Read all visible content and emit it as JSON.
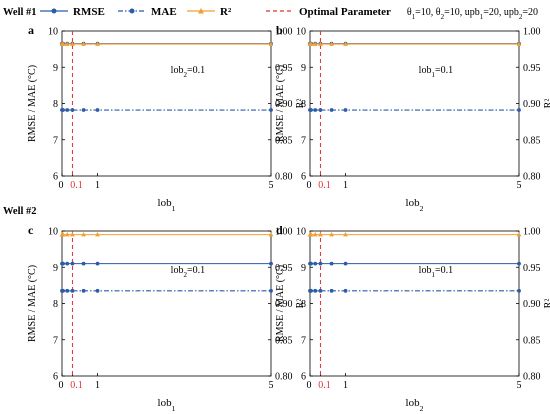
{
  "legend": {
    "items": [
      {
        "label": "RMSE",
        "color": "#2a5ca8",
        "style": "solid",
        "marker": "circle"
      },
      {
        "label": "MAE",
        "color": "#2a5ca8",
        "style": "dashdot",
        "marker": "circle"
      },
      {
        "label": "R²",
        "color": "#f0a030",
        "style": "solid",
        "marker": "triangle"
      },
      {
        "label": "Optimal Parameter",
        "color": "#e03030",
        "style": "dashed",
        "marker": "none"
      }
    ],
    "params_text": "θ1=10, θ2=10, upb1=20, upb2=20"
  },
  "rows": [
    {
      "label": "Well #1"
    },
    {
      "label": "Well #2"
    }
  ],
  "chart_data": [
    {
      "type": "line",
      "panel": "a",
      "row": 0,
      "col": 0,
      "annotation": {
        "text": "lob2=0.1"
      },
      "xlabel": "lob1",
      "ylabel_left": "RMSE / MAE (°C)",
      "ylabel_right": "R²",
      "xlim": [
        0,
        5
      ],
      "ylim_left": [
        6,
        10
      ],
      "ylim_right": [
        0.8,
        1.0
      ],
      "xticks": [
        "0",
        "0.1",
        "1",
        "5"
      ],
      "yticks_left": [
        "6",
        "7",
        "8",
        "9",
        "10"
      ],
      "yticks_right": [
        "0.80",
        "0.85",
        "0.90",
        "0.95",
        "1.00"
      ],
      "optimal_x": 0.1,
      "series": [
        {
          "name": "RMSE",
          "axis": "left",
          "x": [
            0,
            0.01,
            0.05,
            0.1,
            0.5,
            1,
            5
          ],
          "y": [
            9.65,
            9.65,
            9.65,
            9.65,
            9.65,
            9.65,
            9.65
          ]
        },
        {
          "name": "MAE",
          "axis": "left",
          "x": [
            0,
            0.01,
            0.05,
            0.1,
            0.5,
            1,
            5
          ],
          "y": [
            7.82,
            7.82,
            7.82,
            7.82,
            7.82,
            7.82,
            7.82
          ]
        },
        {
          "name": "R²",
          "axis": "right",
          "x": [
            0,
            0.01,
            0.05,
            0.1,
            0.5,
            1,
            5
          ],
          "y": [
            0.982,
            0.982,
            0.982,
            0.982,
            0.982,
            0.982,
            0.982
          ]
        }
      ]
    },
    {
      "type": "line",
      "panel": "b",
      "row": 0,
      "col": 1,
      "annotation": {
        "text": "lob1=0.1"
      },
      "xlabel": "lob2",
      "ylabel_left": "RMSE / MAE (°C)",
      "ylabel_right": "R²",
      "xlim": [
        0,
        5
      ],
      "ylim_left": [
        6,
        10
      ],
      "ylim_right": [
        0.8,
        1.0
      ],
      "xticks": [
        "0",
        "0.1",
        "1",
        "5"
      ],
      "yticks_left": [
        "6",
        "7",
        "8",
        "9",
        "10"
      ],
      "yticks_right": [
        "0.80",
        "0.85",
        "0.90",
        "0.95",
        "1.00"
      ],
      "optimal_x": 0.1,
      "series": [
        {
          "name": "RMSE",
          "axis": "left",
          "x": [
            0,
            0.01,
            0.05,
            0.1,
            0.5,
            1,
            5
          ],
          "y": [
            9.65,
            9.65,
            9.65,
            9.65,
            9.65,
            9.65,
            9.65
          ]
        },
        {
          "name": "MAE",
          "axis": "left",
          "x": [
            0,
            0.01,
            0.05,
            0.1,
            0.5,
            1,
            5
          ],
          "y": [
            7.82,
            7.82,
            7.82,
            7.82,
            7.82,
            7.82,
            7.82
          ]
        },
        {
          "name": "R²",
          "axis": "right",
          "x": [
            0,
            0.01,
            0.05,
            0.1,
            0.5,
            1,
            5
          ],
          "y": [
            0.982,
            0.982,
            0.982,
            0.982,
            0.982,
            0.982,
            0.982
          ]
        }
      ]
    },
    {
      "type": "line",
      "panel": "c",
      "row": 1,
      "col": 0,
      "annotation": {
        "text": "lob2=0.1"
      },
      "xlabel": "lob1",
      "ylabel_left": "RMSE / MAE (°C)",
      "ylabel_right": "R²",
      "xlim": [
        0,
        5
      ],
      "ylim_left": [
        6,
        10
      ],
      "ylim_right": [
        0.8,
        1.0
      ],
      "xticks": [
        "0",
        "0.1",
        "1",
        "5"
      ],
      "yticks_left": [
        "6",
        "7",
        "8",
        "9",
        "10"
      ],
      "yticks_right": [
        "0.80",
        "0.85",
        "0.90",
        "0.95",
        "1.00"
      ],
      "optimal_x": 0.1,
      "series": [
        {
          "name": "RMSE",
          "axis": "left",
          "x": [
            0,
            0.01,
            0.05,
            0.1,
            0.5,
            1,
            5
          ],
          "y": [
            9.1,
            9.1,
            9.1,
            9.1,
            9.1,
            9.1,
            9.1
          ]
        },
        {
          "name": "MAE",
          "axis": "left",
          "x": [
            0,
            0.01,
            0.05,
            0.1,
            0.5,
            1,
            5
          ],
          "y": [
            8.35,
            8.35,
            8.35,
            8.35,
            8.35,
            8.35,
            8.35
          ]
        },
        {
          "name": "R²",
          "axis": "right",
          "x": [
            0,
            0.01,
            0.05,
            0.1,
            0.5,
            1,
            5
          ],
          "y": [
            0.995,
            0.995,
            0.995,
            0.995,
            0.995,
            0.995,
            0.995
          ]
        }
      ]
    },
    {
      "type": "line",
      "panel": "d",
      "row": 1,
      "col": 1,
      "annotation": {
        "text": "lob1=0.1"
      },
      "xlabel": "lob2",
      "ylabel_left": "RMSE / MAE (°C)",
      "ylabel_right": "R²",
      "xlim": [
        0,
        5
      ],
      "ylim_left": [
        6,
        10
      ],
      "ylim_right": [
        0.8,
        1.0
      ],
      "xticks": [
        "0",
        "0.1",
        "1",
        "5"
      ],
      "yticks_left": [
        "6",
        "7",
        "8",
        "9",
        "10"
      ],
      "yticks_right": [
        "0.80",
        "0.85",
        "0.90",
        "0.95",
        "1.00"
      ],
      "optimal_x": 0.1,
      "series": [
        {
          "name": "RMSE",
          "axis": "left",
          "x": [
            0,
            0.01,
            0.05,
            0.1,
            0.5,
            1,
            5
          ],
          "y": [
            9.1,
            9.1,
            9.1,
            9.1,
            9.1,
            9.1,
            9.1
          ]
        },
        {
          "name": "MAE",
          "axis": "left",
          "x": [
            0,
            0.01,
            0.05,
            0.1,
            0.5,
            1,
            5
          ],
          "y": [
            8.35,
            8.35,
            8.35,
            8.35,
            8.35,
            8.35,
            8.35
          ]
        },
        {
          "name": "R²",
          "axis": "right",
          "x": [
            0,
            0.01,
            0.05,
            0.1,
            0.5,
            1,
            5
          ],
          "y": [
            0.995,
            0.995,
            0.995,
            0.995,
            0.995,
            0.995,
            0.995
          ]
        }
      ]
    }
  ]
}
